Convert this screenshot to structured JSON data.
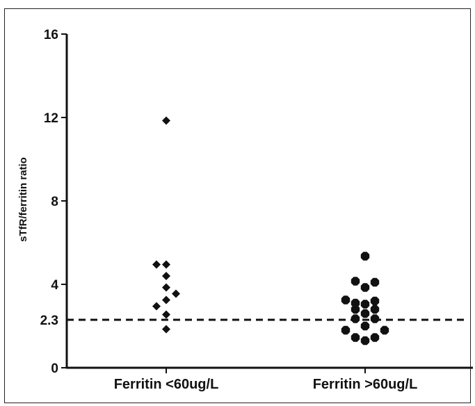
{
  "chart_data": {
    "type": "scatter",
    "title": "",
    "xlabel": "",
    "ylabel": "sTfR/ferritin ratio",
    "ylim": [
      0,
      16
    ],
    "yticks": [
      0,
      4,
      8,
      12,
      16
    ],
    "grid": false,
    "categories": [
      "Ferritin <60ug/L",
      "Ferritin >60ug/L"
    ],
    "reference_line": {
      "value": 2.3,
      "label": "2.3",
      "style": "dashed"
    },
    "series": [
      {
        "category": "Ferritin <60ug/L",
        "marker": "diamond",
        "points": [
          {
            "offset": 0.0,
            "y": 11.85
          },
          {
            "offset": -0.14,
            "y": 4.95
          },
          {
            "offset": 0.0,
            "y": 4.95
          },
          {
            "offset": 0.0,
            "y": 4.4
          },
          {
            "offset": 0.0,
            "y": 3.85
          },
          {
            "offset": 0.14,
            "y": 3.55
          },
          {
            "offset": 0.0,
            "y": 3.25
          },
          {
            "offset": -0.14,
            "y": 2.95
          },
          {
            "offset": 0.0,
            "y": 2.55
          },
          {
            "offset": 0.0,
            "y": 1.85
          }
        ]
      },
      {
        "category": "Ferritin >60ug/L",
        "marker": "octagon",
        "points": [
          {
            "offset": 0.0,
            "y": 5.35
          },
          {
            "offset": -0.14,
            "y": 4.15
          },
          {
            "offset": 0.14,
            "y": 4.1
          },
          {
            "offset": 0.0,
            "y": 3.85
          },
          {
            "offset": -0.28,
            "y": 3.25
          },
          {
            "offset": -0.14,
            "y": 3.1
          },
          {
            "offset": 0.14,
            "y": 3.2
          },
          {
            "offset": 0.0,
            "y": 3.05
          },
          {
            "offset": -0.14,
            "y": 2.8
          },
          {
            "offset": 0.14,
            "y": 2.8
          },
          {
            "offset": 0.0,
            "y": 2.6
          },
          {
            "offset": -0.14,
            "y": 2.35
          },
          {
            "offset": 0.14,
            "y": 2.35
          },
          {
            "offset": 0.0,
            "y": 2.0
          },
          {
            "offset": -0.28,
            "y": 1.8
          },
          {
            "offset": 0.28,
            "y": 1.8
          },
          {
            "offset": -0.14,
            "y": 1.45
          },
          {
            "offset": 0.14,
            "y": 1.45
          },
          {
            "offset": 0.0,
            "y": 1.3
          }
        ]
      }
    ]
  },
  "colors": {
    "marker": "#111111",
    "axis": "#111111"
  }
}
